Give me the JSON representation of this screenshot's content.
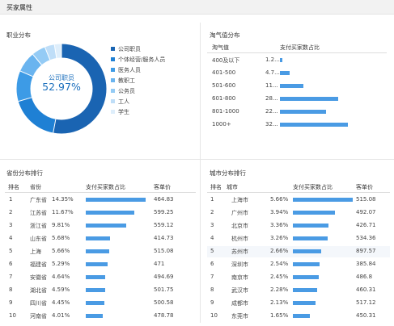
{
  "page": {
    "title": "买家属性"
  },
  "occupation": {
    "title": "职业分布",
    "center_label": "公司职员",
    "center_value": "52.97%",
    "legend": [
      {
        "label": "公司职员",
        "color": "#1a64b2",
        "value": 52.97
      },
      {
        "label": "个体经营/服务人员",
        "color": "#1f80d4",
        "value": 17.5
      },
      {
        "label": "医务人员",
        "color": "#3d9be6",
        "value": 11.0
      },
      {
        "label": "教职工",
        "color": "#6ab4ef",
        "value": 7.5
      },
      {
        "label": "公务员",
        "color": "#94cbf5",
        "value": 5.0
      },
      {
        "label": "工人",
        "color": "#bfdef8",
        "value": 3.5
      },
      {
        "label": "学生",
        "color": "#deeefb",
        "value": 2.53
      }
    ]
  },
  "taoqi": {
    "title": "淘气值分布",
    "col_label": "淘气值",
    "col_pct": "支付买家数占比",
    "rows": [
      {
        "label": "400及以下",
        "pct_text": "1.2...",
        "fill": 0.04
      },
      {
        "label": "401-500",
        "pct_text": "4.7...",
        "fill": 0.14
      },
      {
        "label": "501-600",
        "pct_text": "11...",
        "fill": 0.35
      },
      {
        "label": "601-800",
        "pct_text": "28...",
        "fill": 0.86
      },
      {
        "label": "801-1000",
        "pct_text": "22...",
        "fill": 0.68
      },
      {
        "label": "1000+",
        "pct_text": "32...",
        "fill": 1.0
      }
    ]
  },
  "province": {
    "title": "省份分布排行",
    "cols": {
      "rank": "排名",
      "name": "省份",
      "pct": "支付买家数占比",
      "price": "客单价"
    },
    "rows": [
      {
        "rank": "1",
        "name": "广东省",
        "pct": "14.35%",
        "price": "464.83",
        "fill": 1.0
      },
      {
        "rank": "2",
        "name": "江苏省",
        "pct": "11.67%",
        "price": "599.25",
        "fill": 0.81
      },
      {
        "rank": "3",
        "name": "浙江省",
        "pct": "9.81%",
        "price": "559.12",
        "fill": 0.68
      },
      {
        "rank": "4",
        "name": "山东省",
        "pct": "5.68%",
        "price": "414.73",
        "fill": 0.4
      },
      {
        "rank": "5",
        "name": "上海",
        "pct": "5.66%",
        "price": "515.08",
        "fill": 0.39
      },
      {
        "rank": "6",
        "name": "福建省",
        "pct": "5.29%",
        "price": "471",
        "fill": 0.37
      },
      {
        "rank": "7",
        "name": "安徽省",
        "pct": "4.64%",
        "price": "494.69",
        "fill": 0.32
      },
      {
        "rank": "8",
        "name": "湖北省",
        "pct": "4.59%",
        "price": "501.75",
        "fill": 0.32
      },
      {
        "rank": "9",
        "name": "四川省",
        "pct": "4.45%",
        "price": "500.58",
        "fill": 0.31
      },
      {
        "rank": "10",
        "name": "河南省",
        "pct": "4.01%",
        "price": "478.78",
        "fill": 0.28
      }
    ]
  },
  "city": {
    "title": "城市分布排行",
    "cols": {
      "rank": "排名",
      "name": "城市",
      "pct": "支付买家数占比",
      "price": "客单价"
    },
    "rows": [
      {
        "rank": "1",
        "name": "上海市",
        "pct": "5.66%",
        "price": "515.08",
        "fill": 1.0
      },
      {
        "rank": "2",
        "name": "广州市",
        "pct": "3.94%",
        "price": "492.07",
        "fill": 0.7
      },
      {
        "rank": "3",
        "name": "北京市",
        "pct": "3.36%",
        "price": "426.71",
        "fill": 0.59
      },
      {
        "rank": "4",
        "name": "杭州市",
        "pct": "3.26%",
        "price": "534.36",
        "fill": 0.58
      },
      {
        "rank": "5",
        "name": "苏州市",
        "pct": "2.66%",
        "price": "897.57",
        "fill": 0.47
      },
      {
        "rank": "6",
        "name": "深圳市",
        "pct": "2.54%",
        "price": "385.84",
        "fill": 0.45
      },
      {
        "rank": "7",
        "name": "南京市",
        "pct": "2.45%",
        "price": "486.8",
        "fill": 0.43
      },
      {
        "rank": "8",
        "name": "武汉市",
        "pct": "2.28%",
        "price": "460.31",
        "fill": 0.4
      },
      {
        "rank": "9",
        "name": "成都市",
        "pct": "2.13%",
        "price": "517.12",
        "fill": 0.38
      },
      {
        "rank": "10",
        "name": "东莞市",
        "pct": "1.65%",
        "price": "450.31",
        "fill": 0.29
      }
    ]
  }
}
